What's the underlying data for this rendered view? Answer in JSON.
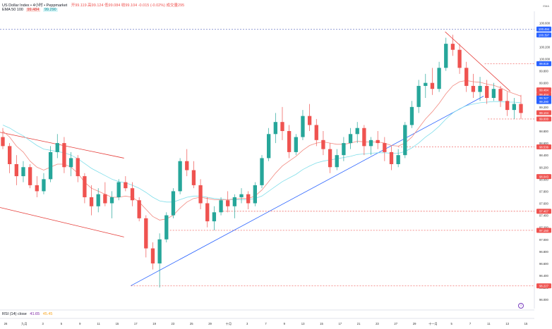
{
  "header": {
    "symbol_line": "US Dollar Index • 4小时 • Peppmarket",
    "ohlc": "开99.119  高99.124  低99.084  收99.104  -0.015 (-0.02%)  成交量295",
    "ma_label": "EMA 50 100",
    "ma50_value": "99.484",
    "ma100_value": "99.290"
  },
  "rsi": {
    "label": "RSI (14) close",
    "value1": "41.65",
    "value2": "45.45"
  },
  "brand": "EMA",
  "colors": {
    "up": "#26a69a",
    "down": "#ef5350",
    "ema50": "#f28b82",
    "ema100": "#80deea",
    "trend_up": "#2962ff",
    "trend_down": "#e53935",
    "channel": "#e53935",
    "hline": "#ef5350",
    "ref_blue": "#5c6bc0"
  },
  "chart_data": {
    "type": "candlestick",
    "y_ticks": [
      "100.600",
      "100.400",
      "100.200",
      "100.000",
      "99.800",
      "99.600",
      "99.400",
      "99.200",
      "99.000",
      "98.800",
      "98.600",
      "98.400",
      "98.200",
      "98.000",
      "97.800",
      "97.600",
      "97.400",
      "97.200",
      "97.000",
      "96.800",
      "96.600",
      "96.400",
      "96.200",
      "96.000"
    ],
    "y_range": [
      95.85,
      100.72
    ],
    "x_ticks": [
      "26",
      "九月",
      "3",
      "5",
      "9",
      "11",
      "15",
      "17",
      "19",
      "23",
      "25",
      "29",
      "十月",
      "3",
      "7",
      "9",
      "13",
      "15",
      "17",
      "21",
      "23",
      "27",
      "29",
      "十一月",
      "5",
      "7",
      "11",
      "13",
      "15"
    ],
    "price_badges": [
      {
        "label": "100.494",
        "value": 100.494,
        "kind": "blue"
      },
      {
        "label": "100.397",
        "value": 100.397,
        "kind": "blue"
      },
      {
        "label": "99.919",
        "value": 99.919,
        "kind": "blue"
      },
      {
        "label": "99.484",
        "value": 99.484,
        "kind": "red"
      },
      {
        "label": "99.404",
        "value": 99.404,
        "kind": "red"
      },
      {
        "label": "99.347",
        "value": 99.347,
        "kind": "blue"
      },
      {
        "label": "99.290",
        "value": 99.29,
        "kind": "blue"
      },
      {
        "label": "99.104",
        "value": 99.104,
        "kind": "red"
      },
      {
        "label": "99.000",
        "value": 99.0,
        "kind": "red"
      },
      {
        "label": "98.536",
        "value": 98.536,
        "kind": "red"
      },
      {
        "label": "98.043",
        "value": 98.043,
        "kind": "red"
      },
      {
        "label": "97.467",
        "value": 97.467,
        "kind": "red"
      },
      {
        "label": "97.150",
        "value": 97.15,
        "kind": "red"
      },
      {
        "label": "96.227",
        "value": 96.227,
        "kind": "red"
      }
    ],
    "hlines": [
      {
        "value": 100.494,
        "from": 0.0,
        "color": "ref_blue"
      },
      {
        "value": 99.919,
        "from": 0.907,
        "color": "hline"
      },
      {
        "value": 99.0,
        "from": 0.913,
        "color": "hline"
      },
      {
        "value": 98.536,
        "from": 0.745,
        "color": "hline"
      },
      {
        "value": 97.467,
        "from": 0.417,
        "color": "hline"
      },
      {
        "value": 97.15,
        "from": 0.318,
        "color": "hline"
      },
      {
        "value": 96.227,
        "from": 0.245,
        "color": "hline"
      }
    ],
    "trendlines": [
      {
        "x1": 0.245,
        "y1": 96.23,
        "x2": 0.905,
        "y2": 99.38,
        "color": "trend_up"
      },
      {
        "x1": 0.833,
        "y1": 100.45,
        "x2": 0.955,
        "y2": 99.46,
        "color": "trend_down"
      },
      {
        "x1": 0.0,
        "y1": 98.78,
        "x2": 0.232,
        "y2": 98.35,
        "color": "channel"
      },
      {
        "x1": 0.0,
        "y1": 97.53,
        "x2": 0.232,
        "y2": 97.04,
        "color": "channel"
      }
    ],
    "candles": [
      [
        98.7,
        98.85,
        98.5,
        98.55
      ],
      [
        98.55,
        98.6,
        98.1,
        98.25
      ],
      [
        98.25,
        98.4,
        97.9,
        98.05
      ],
      [
        98.05,
        98.3,
        97.95,
        98.2
      ],
      [
        98.2,
        98.25,
        97.85,
        97.9
      ],
      [
        97.9,
        98.05,
        97.7,
        97.8
      ],
      [
        97.8,
        98.1,
        97.75,
        98.0
      ],
      [
        98.0,
        98.55,
        97.95,
        98.45
      ],
      [
        98.45,
        98.75,
        98.35,
        98.6
      ],
      [
        98.6,
        98.7,
        98.1,
        98.2
      ],
      [
        98.2,
        98.45,
        98.05,
        98.35
      ],
      [
        98.35,
        98.4,
        97.95,
        98.05
      ],
      [
        98.05,
        98.1,
        97.6,
        97.7
      ],
      [
        97.7,
        97.9,
        97.4,
        97.55
      ],
      [
        97.55,
        97.85,
        97.45,
        97.75
      ],
      [
        97.75,
        97.95,
        97.55,
        97.6
      ],
      [
        97.6,
        97.8,
        97.35,
        97.7
      ],
      [
        97.7,
        98.0,
        97.65,
        97.95
      ],
      [
        97.95,
        98.05,
        97.8,
        97.85
      ],
      [
        97.85,
        97.95,
        97.55,
        97.65
      ],
      [
        97.65,
        97.7,
        97.3,
        97.35
      ],
      [
        97.35,
        97.4,
        96.7,
        96.85
      ],
      [
        96.85,
        96.95,
        96.5,
        96.6
      ],
      [
        96.6,
        97.1,
        96.2,
        97.0
      ],
      [
        97.0,
        97.45,
        96.95,
        97.4
      ],
      [
        97.4,
        97.85,
        97.35,
        97.8
      ],
      [
        97.8,
        98.35,
        97.75,
        98.3
      ],
      [
        98.3,
        98.5,
        98.05,
        98.15
      ],
      [
        98.15,
        98.3,
        97.85,
        97.9
      ],
      [
        97.9,
        98.0,
        97.5,
        97.6
      ],
      [
        97.6,
        97.7,
        97.2,
        97.3
      ],
      [
        97.3,
        97.55,
        97.15,
        97.45
      ],
      [
        97.45,
        97.7,
        97.4,
        97.65
      ],
      [
        97.65,
        97.8,
        97.45,
        97.55
      ],
      [
        97.55,
        97.75,
        97.35,
        97.7
      ],
      [
        97.7,
        97.85,
        97.6,
        97.75
      ],
      [
        97.75,
        97.8,
        97.5,
        97.6
      ],
      [
        97.6,
        97.95,
        97.55,
        97.9
      ],
      [
        97.9,
        98.4,
        97.85,
        98.35
      ],
      [
        98.35,
        98.85,
        98.3,
        98.75
      ],
      [
        98.75,
        99.1,
        98.6,
        98.95
      ],
      [
        98.95,
        99.2,
        98.65,
        98.8
      ],
      [
        98.8,
        98.9,
        98.35,
        98.45
      ],
      [
        98.45,
        98.75,
        98.4,
        98.7
      ],
      [
        98.7,
        99.15,
        98.65,
        99.05
      ],
      [
        99.05,
        99.25,
        98.8,
        98.9
      ],
      [
        98.9,
        99.0,
        98.55,
        98.65
      ],
      [
        98.65,
        98.8,
        98.4,
        98.5
      ],
      [
        98.5,
        98.6,
        98.1,
        98.2
      ],
      [
        98.2,
        98.5,
        98.15,
        98.4
      ],
      [
        98.4,
        98.7,
        98.3,
        98.6
      ],
      [
        98.6,
        98.85,
        98.5,
        98.75
      ],
      [
        98.75,
        98.95,
        98.6,
        98.85
      ],
      [
        98.85,
        98.9,
        98.4,
        98.55
      ],
      [
        98.55,
        98.7,
        98.4,
        98.65
      ],
      [
        98.65,
        98.8,
        98.5,
        98.6
      ],
      [
        98.6,
        98.7,
        98.3,
        98.45
      ],
      [
        98.45,
        98.55,
        98.15,
        98.25
      ],
      [
        98.25,
        98.5,
        98.2,
        98.4
      ],
      [
        98.4,
        98.95,
        98.35,
        98.9
      ],
      [
        98.9,
        99.3,
        98.85,
        99.2
      ],
      [
        99.2,
        99.65,
        99.1,
        99.55
      ],
      [
        99.55,
        99.75,
        99.35,
        99.6
      ],
      [
        99.6,
        99.85,
        99.4,
        99.5
      ],
      [
        99.5,
        99.95,
        99.45,
        99.85
      ],
      [
        99.85,
        100.35,
        99.8,
        100.25
      ],
      [
        100.25,
        100.4,
        100.05,
        100.15
      ],
      [
        100.15,
        100.25,
        99.75,
        99.85
      ],
      [
        99.85,
        99.95,
        99.45,
        99.55
      ],
      [
        99.55,
        99.75,
        99.35,
        99.45
      ],
      [
        99.45,
        99.7,
        99.3,
        99.55
      ],
      [
        99.55,
        99.65,
        99.25,
        99.35
      ],
      [
        99.35,
        99.6,
        99.3,
        99.5
      ],
      [
        99.5,
        99.55,
        99.2,
        99.3
      ],
      [
        99.3,
        99.45,
        99.05,
        99.15
      ],
      [
        99.15,
        99.35,
        99.0,
        99.25
      ],
      [
        99.25,
        99.4,
        99.0,
        99.1
      ]
    ],
    "ema50": [
      98.8,
      98.7,
      98.55,
      98.45,
      98.3,
      98.2,
      98.15,
      98.2,
      98.25,
      98.25,
      98.2,
      98.1,
      97.95,
      97.85,
      97.8,
      97.75,
      97.7,
      97.7,
      97.72,
      97.7,
      97.62,
      97.5,
      97.38,
      97.32,
      97.34,
      97.4,
      97.52,
      97.62,
      97.68,
      97.7,
      97.68,
      97.66,
      97.66,
      97.66,
      97.67,
      97.68,
      97.68,
      97.72,
      97.82,
      97.96,
      98.1,
      98.22,
      98.3,
      98.38,
      98.48,
      98.56,
      98.6,
      98.62,
      98.6,
      98.58,
      98.58,
      98.6,
      98.63,
      98.62,
      98.62,
      98.62,
      98.6,
      98.56,
      98.55,
      98.6,
      98.7,
      98.85,
      99.0,
      99.12,
      99.26,
      99.42,
      99.55,
      99.62,
      99.64,
      99.62,
      99.61,
      99.58,
      99.56,
      99.52,
      99.46,
      99.42,
      99.38
    ],
    "ema100": [
      98.9,
      98.85,
      98.78,
      98.72,
      98.64,
      98.56,
      98.5,
      98.48,
      98.46,
      98.44,
      98.4,
      98.34,
      98.26,
      98.18,
      98.12,
      98.06,
      98.0,
      97.96,
      97.94,
      97.9,
      97.85,
      97.78,
      97.7,
      97.64,
      97.62,
      97.62,
      97.66,
      97.7,
      97.72,
      97.72,
      97.7,
      97.68,
      97.67,
      97.66,
      97.66,
      97.66,
      97.66,
      97.68,
      97.72,
      97.8,
      97.88,
      97.96,
      98.02,
      98.08,
      98.16,
      98.22,
      98.27,
      98.3,
      98.32,
      98.34,
      98.36,
      98.38,
      98.41,
      98.42,
      98.43,
      98.44,
      98.44,
      98.43,
      98.43,
      98.46,
      98.52,
      98.6,
      98.7,
      98.78,
      98.88,
      99.0,
      99.1,
      99.17,
      99.22,
      99.25,
      99.27,
      99.28,
      99.29,
      99.29,
      99.28,
      99.28,
      99.27
    ]
  }
}
